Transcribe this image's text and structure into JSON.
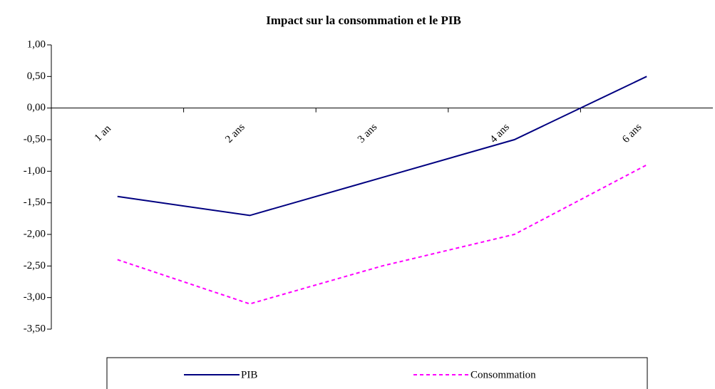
{
  "chart_data": {
    "type": "line",
    "title": "Impact sur la consommation et le PIB",
    "categories": [
      "1 an",
      "2 ans",
      "3 ans",
      "4 ans",
      "6 ans"
    ],
    "series": [
      {
        "name": "PIB",
        "color": "#000080",
        "dashed": false,
        "values": [
          -1.4,
          -1.7,
          -1.1,
          -0.5,
          0.5
        ]
      },
      {
        "name": "Consommation",
        "color": "#ff00ff",
        "dashed": true,
        "values": [
          -2.4,
          -3.1,
          -2.5,
          -2.0,
          -0.9
        ]
      }
    ],
    "ylim": [
      -3.5,
      1.0
    ],
    "yticks": [
      {
        "value": 1.0,
        "label": "1,00"
      },
      {
        "value": 0.5,
        "label": "0,50"
      },
      {
        "value": 0,
        "label": "0,00"
      },
      {
        "value": -0.5,
        "label": "-0,50"
      },
      {
        "value": -1.0,
        "label": "-1,00"
      },
      {
        "value": -1.5,
        "label": "-1,50"
      },
      {
        "value": -2.0,
        "label": "-2,00"
      },
      {
        "value": -2.5,
        "label": "-2,50"
      },
      {
        "value": -3.0,
        "label": "-3,00"
      },
      {
        "value": -3.5,
        "label": "-3,50"
      }
    ],
    "legend": "bottom"
  }
}
